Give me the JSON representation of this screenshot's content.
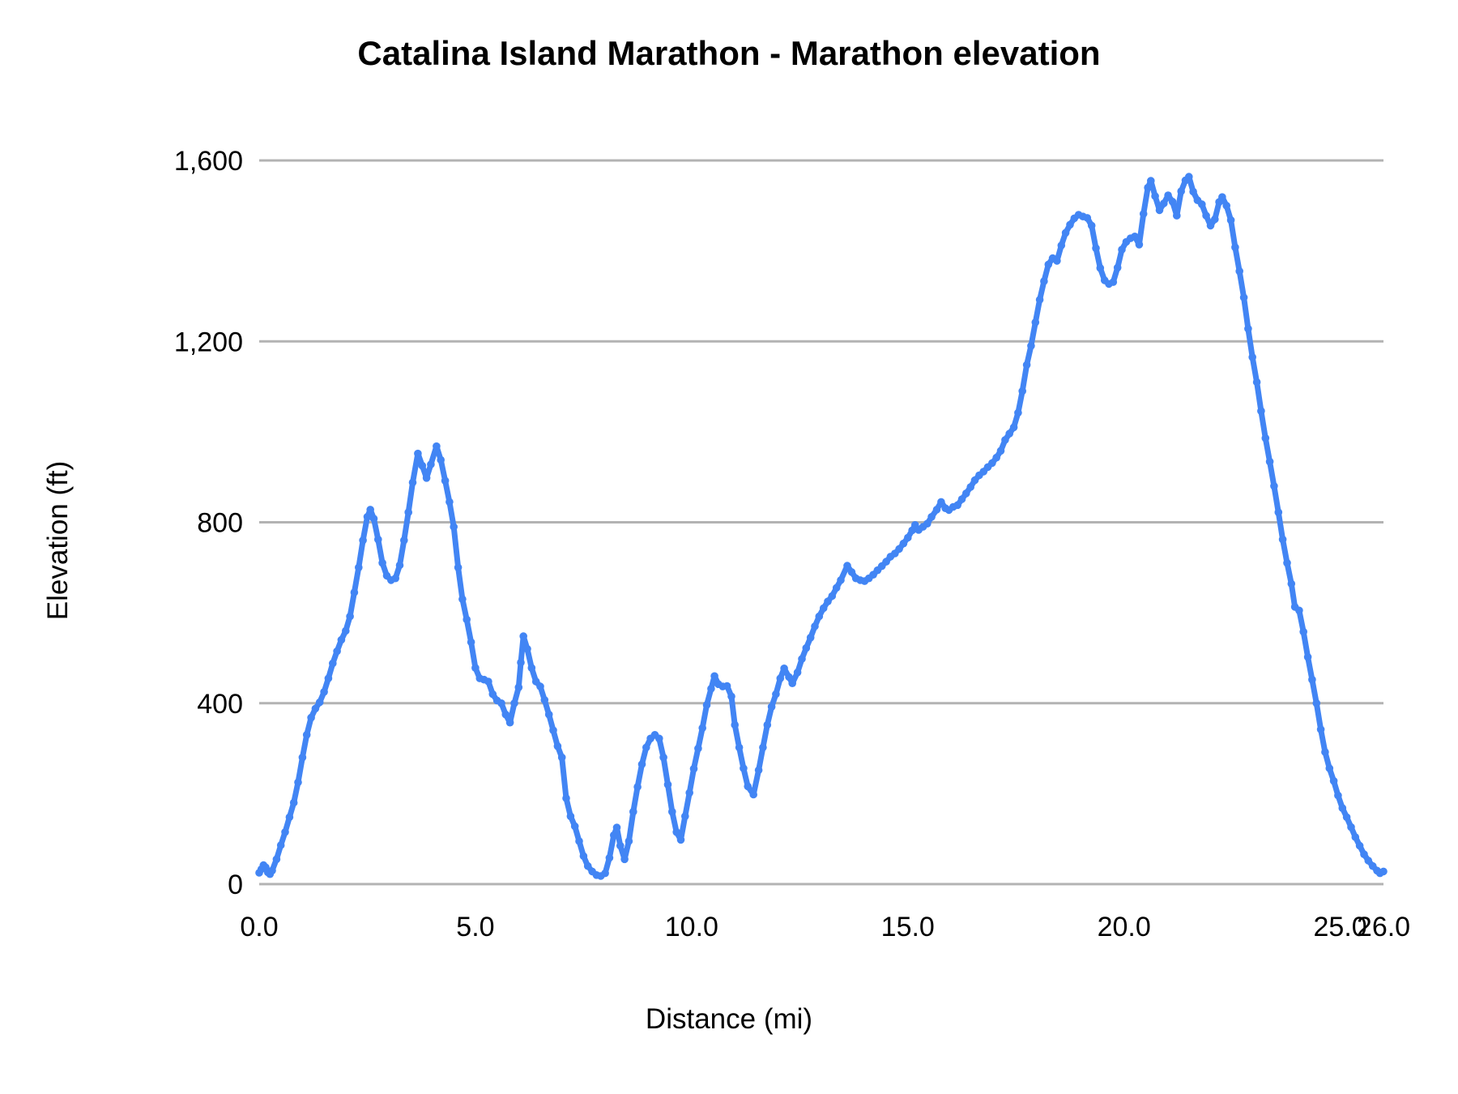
{
  "title": "Catalina Island Marathon - Marathon elevation",
  "colors": {
    "line": "#4285f4",
    "marker": "#4285f4",
    "gridline": "#b3b3b3",
    "text": "#000000",
    "background": "#ffffff"
  },
  "y_axis": {
    "label": "Elevation (ft)",
    "min": 0,
    "max": 1600,
    "ticks": [
      {
        "value": 0,
        "label": "0"
      },
      {
        "value": 400,
        "label": "400"
      },
      {
        "value": 800,
        "label": "800"
      },
      {
        "value": 1200,
        "label": "1,200"
      },
      {
        "value": 1600,
        "label": "1,600"
      }
    ]
  },
  "x_axis": {
    "label": "Distance (mi)",
    "min": 0,
    "max": 26,
    "ticks": [
      {
        "value": 0,
        "label": "0.0"
      },
      {
        "value": 5,
        "label": "5.0"
      },
      {
        "value": 10,
        "label": "10.0"
      },
      {
        "value": 15,
        "label": "15.0"
      },
      {
        "value": 20,
        "label": "20.0"
      },
      {
        "value": 25,
        "label": "25.0"
      },
      {
        "value": 26,
        "label": "26.0"
      }
    ]
  },
  "chart_data": {
    "type": "line",
    "title": "Catalina Island Marathon - Marathon elevation",
    "xlabel": "Distance (mi)",
    "ylabel": "Elevation (ft)",
    "xlim": [
      0,
      26
    ],
    "ylim": [
      0,
      1600
    ],
    "grid": true,
    "legend": false,
    "marker": "circle",
    "series_name": "Marathon elevation",
    "points": [
      [
        0.0,
        25
      ],
      [
        0.05,
        33
      ],
      [
        0.1,
        42
      ],
      [
        0.15,
        37
      ],
      [
        0.2,
        26
      ],
      [
        0.25,
        22
      ],
      [
        0.3,
        30
      ],
      [
        0.4,
        55
      ],
      [
        0.5,
        86
      ],
      [
        0.6,
        115
      ],
      [
        0.7,
        148
      ],
      [
        0.8,
        180
      ],
      [
        0.9,
        225
      ],
      [
        1.0,
        280
      ],
      [
        1.1,
        330
      ],
      [
        1.2,
        368
      ],
      [
        1.3,
        388
      ],
      [
        1.4,
        402
      ],
      [
        1.5,
        425
      ],
      [
        1.6,
        455
      ],
      [
        1.7,
        488
      ],
      [
        1.8,
        515
      ],
      [
        1.9,
        540
      ],
      [
        2.0,
        560
      ],
      [
        2.1,
        592
      ],
      [
        2.2,
        645
      ],
      [
        2.3,
        700
      ],
      [
        2.4,
        760
      ],
      [
        2.5,
        812
      ],
      [
        2.57,
        828
      ],
      [
        2.65,
        808
      ],
      [
        2.75,
        762
      ],
      [
        2.85,
        710
      ],
      [
        2.95,
        682
      ],
      [
        3.05,
        672
      ],
      [
        3.15,
        676
      ],
      [
        3.25,
        705
      ],
      [
        3.35,
        760
      ],
      [
        3.45,
        822
      ],
      [
        3.55,
        888
      ],
      [
        3.67,
        952
      ],
      [
        3.77,
        925
      ],
      [
        3.87,
        898
      ],
      [
        3.97,
        928
      ],
      [
        4.1,
        968
      ],
      [
        4.2,
        938
      ],
      [
        4.3,
        892
      ],
      [
        4.4,
        845
      ],
      [
        4.5,
        790
      ],
      [
        4.6,
        700
      ],
      [
        4.7,
        630
      ],
      [
        4.8,
        585
      ],
      [
        4.9,
        535
      ],
      [
        5.0,
        478
      ],
      [
        5.1,
        455
      ],
      [
        5.2,
        452
      ],
      [
        5.3,
        448
      ],
      [
        5.4,
        420
      ],
      [
        5.5,
        406
      ],
      [
        5.6,
        400
      ],
      [
        5.7,
        375
      ],
      [
        5.8,
        357
      ],
      [
        5.9,
        400
      ],
      [
        6.0,
        435
      ],
      [
        6.05,
        490
      ],
      [
        6.11,
        548
      ],
      [
        6.2,
        520
      ],
      [
        6.3,
        478
      ],
      [
        6.4,
        448
      ],
      [
        6.5,
        437
      ],
      [
        6.6,
        407
      ],
      [
        6.7,
        375
      ],
      [
        6.8,
        340
      ],
      [
        6.9,
        305
      ],
      [
        7.0,
        280
      ],
      [
        7.1,
        190
      ],
      [
        7.2,
        150
      ],
      [
        7.3,
        128
      ],
      [
        7.4,
        95
      ],
      [
        7.5,
        62
      ],
      [
        7.6,
        40
      ],
      [
        7.7,
        28
      ],
      [
        7.8,
        20
      ],
      [
        7.9,
        18
      ],
      [
        8.0,
        24
      ],
      [
        8.1,
        58
      ],
      [
        8.2,
        108
      ],
      [
        8.27,
        125
      ],
      [
        8.35,
        85
      ],
      [
        8.45,
        55
      ],
      [
        8.55,
        95
      ],
      [
        8.65,
        160
      ],
      [
        8.75,
        215
      ],
      [
        8.85,
        265
      ],
      [
        8.95,
        302
      ],
      [
        9.05,
        322
      ],
      [
        9.15,
        330
      ],
      [
        9.25,
        322
      ],
      [
        9.35,
        280
      ],
      [
        9.45,
        220
      ],
      [
        9.55,
        160
      ],
      [
        9.65,
        115
      ],
      [
        9.75,
        98
      ],
      [
        9.85,
        150
      ],
      [
        9.95,
        202
      ],
      [
        10.05,
        255
      ],
      [
        10.15,
        300
      ],
      [
        10.25,
        345
      ],
      [
        10.35,
        396
      ],
      [
        10.45,
        432
      ],
      [
        10.53,
        460
      ],
      [
        10.62,
        442
      ],
      [
        10.72,
        437
      ],
      [
        10.82,
        438
      ],
      [
        10.92,
        415
      ],
      [
        11.0,
        352
      ],
      [
        11.1,
        302
      ],
      [
        11.2,
        256
      ],
      [
        11.3,
        216
      ],
      [
        11.43,
        198
      ],
      [
        11.55,
        252
      ],
      [
        11.65,
        302
      ],
      [
        11.75,
        352
      ],
      [
        11.85,
        392
      ],
      [
        11.95,
        420
      ],
      [
        12.05,
        455
      ],
      [
        12.14,
        477
      ],
      [
        12.25,
        458
      ],
      [
        12.33,
        444
      ],
      [
        12.45,
        468
      ],
      [
        12.55,
        498
      ],
      [
        12.65,
        522
      ],
      [
        12.75,
        545
      ],
      [
        12.85,
        570
      ],
      [
        12.95,
        592
      ],
      [
        13.05,
        610
      ],
      [
        13.15,
        625
      ],
      [
        13.25,
        637
      ],
      [
        13.35,
        655
      ],
      [
        13.45,
        672
      ],
      [
        13.6,
        704
      ],
      [
        13.7,
        690
      ],
      [
        13.8,
        676
      ],
      [
        13.9,
        672
      ],
      [
        14.0,
        670
      ],
      [
        14.1,
        676
      ],
      [
        14.2,
        684
      ],
      [
        14.3,
        694
      ],
      [
        14.4,
        703
      ],
      [
        14.5,
        713
      ],
      [
        14.6,
        724
      ],
      [
        14.7,
        731
      ],
      [
        14.8,
        741
      ],
      [
        14.9,
        753
      ],
      [
        15.0,
        766
      ],
      [
        15.1,
        782
      ],
      [
        15.17,
        794
      ],
      [
        15.25,
        783
      ],
      [
        15.35,
        790
      ],
      [
        15.45,
        797
      ],
      [
        15.55,
        812
      ],
      [
        15.67,
        828
      ],
      [
        15.77,
        845
      ],
      [
        15.87,
        831
      ],
      [
        15.95,
        827
      ],
      [
        16.05,
        834
      ],
      [
        16.15,
        838
      ],
      [
        16.25,
        851
      ],
      [
        16.35,
        864
      ],
      [
        16.45,
        878
      ],
      [
        16.55,
        893
      ],
      [
        16.65,
        904
      ],
      [
        16.75,
        912
      ],
      [
        16.85,
        922
      ],
      [
        16.95,
        931
      ],
      [
        17.05,
        943
      ],
      [
        17.15,
        958
      ],
      [
        17.25,
        982
      ],
      [
        17.35,
        996
      ],
      [
        17.45,
        1010
      ],
      [
        17.55,
        1042
      ],
      [
        17.65,
        1090
      ],
      [
        17.75,
        1148
      ],
      [
        17.85,
        1190
      ],
      [
        17.95,
        1242
      ],
      [
        18.05,
        1292
      ],
      [
        18.15,
        1333
      ],
      [
        18.25,
        1370
      ],
      [
        18.35,
        1384
      ],
      [
        18.45,
        1378
      ],
      [
        18.55,
        1412
      ],
      [
        18.65,
        1440
      ],
      [
        18.75,
        1458
      ],
      [
        18.85,
        1472
      ],
      [
        18.95,
        1480
      ],
      [
        19.05,
        1476
      ],
      [
        19.15,
        1473
      ],
      [
        19.25,
        1456
      ],
      [
        19.35,
        1406
      ],
      [
        19.45,
        1362
      ],
      [
        19.55,
        1335
      ],
      [
        19.65,
        1327
      ],
      [
        19.75,
        1331
      ],
      [
        19.85,
        1363
      ],
      [
        19.95,
        1403
      ],
      [
        20.05,
        1420
      ],
      [
        20.15,
        1428
      ],
      [
        20.25,
        1432
      ],
      [
        20.35,
        1414
      ],
      [
        20.45,
        1482
      ],
      [
        20.55,
        1540
      ],
      [
        20.62,
        1555
      ],
      [
        20.72,
        1521
      ],
      [
        20.82,
        1490
      ],
      [
        20.92,
        1505
      ],
      [
        21.02,
        1523
      ],
      [
        21.12,
        1509
      ],
      [
        21.22,
        1478
      ],
      [
        21.32,
        1532
      ],
      [
        21.42,
        1556
      ],
      [
        21.5,
        1564
      ],
      [
        21.6,
        1531
      ],
      [
        21.7,
        1512
      ],
      [
        21.8,
        1503
      ],
      [
        21.9,
        1478
      ],
      [
        22.0,
        1456
      ],
      [
        22.1,
        1470
      ],
      [
        22.2,
        1508
      ],
      [
        22.27,
        1519
      ],
      [
        22.37,
        1500
      ],
      [
        22.47,
        1468
      ],
      [
        22.57,
        1408
      ],
      [
        22.67,
        1355
      ],
      [
        22.77,
        1297
      ],
      [
        22.87,
        1228
      ],
      [
        22.97,
        1165
      ],
      [
        23.07,
        1110
      ],
      [
        23.17,
        1046
      ],
      [
        23.27,
        986
      ],
      [
        23.37,
        934
      ],
      [
        23.47,
        880
      ],
      [
        23.57,
        822
      ],
      [
        23.67,
        762
      ],
      [
        23.77,
        710
      ],
      [
        23.87,
        664
      ],
      [
        23.95,
        613
      ],
      [
        24.05,
        605
      ],
      [
        24.15,
        558
      ],
      [
        24.25,
        502
      ],
      [
        24.35,
        452
      ],
      [
        24.45,
        400
      ],
      [
        24.55,
        342
      ],
      [
        24.65,
        292
      ],
      [
        24.75,
        256
      ],
      [
        24.85,
        228
      ],
      [
        24.95,
        196
      ],
      [
        25.05,
        168
      ],
      [
        25.15,
        148
      ],
      [
        25.25,
        126
      ],
      [
        25.35,
        104
      ],
      [
        25.45,
        85
      ],
      [
        25.55,
        66
      ],
      [
        25.65,
        52
      ],
      [
        25.75,
        40
      ],
      [
        25.85,
        30
      ],
      [
        25.92,
        24
      ],
      [
        26.0,
        28
      ]
    ]
  }
}
